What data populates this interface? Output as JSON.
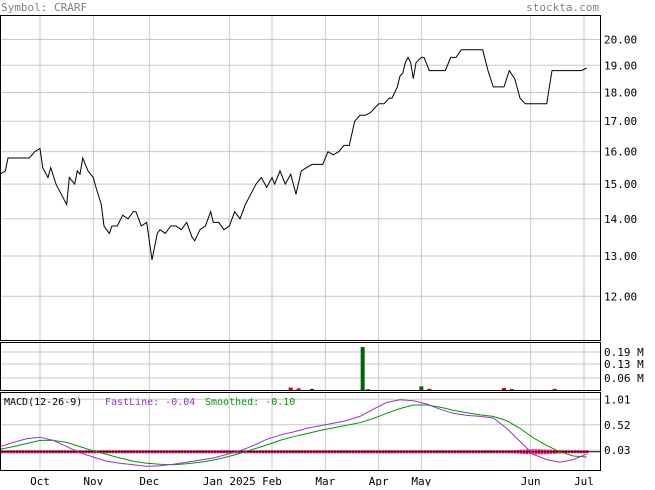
{
  "header": {
    "symbol_text": "Symbol: CRARF",
    "site_text": "stockta.com"
  },
  "colors": {
    "background": "#ffffff",
    "frame": "#000000",
    "grid": "#c8c8c8",
    "price_line": "#000000",
    "volume_bar_up": "#006600",
    "volume_bar_down": "#cc0000",
    "macd_fastline": "#9933cc",
    "macd_smoothed": "#009900",
    "macd_histogram": "#ff0066",
    "header_text": "#808080"
  },
  "chart_data": {
    "type": "line",
    "x_tick_labels": [
      "Oct",
      "Nov",
      "Dec",
      "Jan 2025",
      "Feb",
      "Mar",
      "Apr",
      "May",
      "Jun",
      "Jul"
    ],
    "x_tick_positions": [
      1.5,
      3.5,
      5.6,
      8.6,
      10.2,
      12.2,
      14.2,
      15.8,
      19.9,
      21.9
    ],
    "x_range": [
      0,
      22.5
    ],
    "grid": true,
    "price_panel": {
      "y_scale": "log",
      "ylim": [
        11.0,
        21.0
      ],
      "y_tick_labels": [
        "20.00",
        "19.00",
        "18.00",
        "17.00",
        "16.00",
        "15.00",
        "14.00",
        "13.00",
        "12.00"
      ],
      "y_tick_values": [
        20,
        19,
        18,
        17,
        16,
        15,
        14,
        13,
        12
      ],
      "series": [
        {
          "x": [
            0,
            0.2,
            0.3,
            0.5,
            0.7,
            0.9,
            1.1,
            1.3,
            1.5,
            1.6,
            1.8,
            1.9,
            2.1,
            2.3,
            2.5,
            2.6,
            2.8,
            2.9,
            3.0,
            3.1,
            3.3,
            3.5,
            3.6,
            3.8,
            3.9,
            4.1,
            4.2,
            4.4,
            4.6,
            4.8,
            5.0,
            5.1,
            5.3,
            5.5,
            5.6,
            5.7,
            5.9,
            6.0,
            6.2,
            6.4,
            6.6,
            6.8,
            7.0,
            7.2,
            7.3,
            7.5,
            7.7,
            7.9,
            8.0,
            8.2,
            8.4,
            8.6,
            8.8,
            9.0,
            9.2,
            9.4,
            9.6,
            9.8,
            10.0,
            10.2,
            10.3,
            10.5,
            10.7,
            10.9,
            11.1,
            11.3,
            11.5,
            11.7,
            11.9,
            12.1,
            12.3,
            12.5,
            12.7,
            12.9,
            13.1,
            13.3,
            13.5,
            13.7,
            13.9,
            14.0,
            14.2,
            14.4,
            14.6,
            14.7,
            14.8,
            14.9,
            15.0,
            15.1,
            15.2,
            15.3,
            15.4,
            15.5,
            15.6,
            15.8,
            15.9,
            16.1,
            16.3,
            16.5,
            16.7,
            16.9,
            17.1,
            17.3,
            17.5,
            17.7,
            17.9,
            18.1,
            18.3,
            18.5,
            18.7,
            18.9,
            19.1,
            19.3,
            19.5,
            19.7,
            19.9,
            20.1,
            20.3,
            20.5,
            20.7,
            20.9,
            21.1,
            21.3,
            21.5,
            21.6,
            21.8,
            22.0
          ],
          "y": [
            15.3,
            15.4,
            15.8,
            15.8,
            15.8,
            15.8,
            15.8,
            16.0,
            16.1,
            15.5,
            15.2,
            15.5,
            15.0,
            14.7,
            14.4,
            15.2,
            15.0,
            15.4,
            15.3,
            15.8,
            15.4,
            15.2,
            14.9,
            14.4,
            13.8,
            13.6,
            13.8,
            13.8,
            14.1,
            14.0,
            14.2,
            14.2,
            13.8,
            13.9,
            13.4,
            12.9,
            13.6,
            13.7,
            13.6,
            13.8,
            13.8,
            13.7,
            13.9,
            13.5,
            13.4,
            13.7,
            13.8,
            14.2,
            13.9,
            13.9,
            13.7,
            13.8,
            14.2,
            14.0,
            14.4,
            14.7,
            15.0,
            15.2,
            14.9,
            15.2,
            15.0,
            15.4,
            15.0,
            15.3,
            14.7,
            15.4,
            15.5,
            15.6,
            15.6,
            15.6,
            16.0,
            15.9,
            16.0,
            16.2,
            16.2,
            17.0,
            17.2,
            17.2,
            17.3,
            17.4,
            17.6,
            17.6,
            17.8,
            17.8,
            18.0,
            18.2,
            18.6,
            18.7,
            19.1,
            19.3,
            19.1,
            18.5,
            19.1,
            19.3,
            19.3,
            18.8,
            18.8,
            18.8,
            18.8,
            19.3,
            19.3,
            19.6,
            19.6,
            19.6,
            19.6,
            19.6,
            18.8,
            18.2,
            18.2,
            18.2,
            18.8,
            18.5,
            17.8,
            17.6,
            17.6,
            17.6,
            17.6,
            17.6,
            18.8,
            18.8,
            18.8,
            18.8,
            18.8,
            18.8,
            18.8,
            18.9
          ]
        }
      ]
    },
    "volume_panel": {
      "ylim": [
        0,
        0.24
      ],
      "y_tick_labels": [
        "0.19 M",
        "0.13 M",
        "0.06 M"
      ],
      "y_tick_values": [
        0.19,
        0.13,
        0.06
      ],
      "bars": [
        {
          "x": 10.9,
          "value": 0.012,
          "color": "down"
        },
        {
          "x": 11.2,
          "value": 0.008,
          "color": "down"
        },
        {
          "x": 11.7,
          "value": 0.006,
          "color": "up"
        },
        {
          "x": 13.6,
          "value": 0.215,
          "color": "up"
        },
        {
          "x": 13.8,
          "value": 0.004,
          "color": "up"
        },
        {
          "x": 15.8,
          "value": 0.018,
          "color": "up"
        },
        {
          "x": 16.1,
          "value": 0.006,
          "color": "down"
        },
        {
          "x": 18.9,
          "value": 0.01,
          "color": "down"
        },
        {
          "x": 19.2,
          "value": 0.005,
          "color": "down"
        },
        {
          "x": 20.8,
          "value": 0.006,
          "color": "down"
        }
      ]
    },
    "macd_panel": {
      "legend_title": "MACD(12-26-9)",
      "fastline_label": "FastLine: -0.04",
      "smoothed_label": "Smoothed: -0.10",
      "ylim": [
        -0.35,
        1.15
      ],
      "y_tick_labels": [
        "1.01",
        "0.52",
        "0.03"
      ],
      "y_tick_values": [
        1.01,
        0.52,
        0.03
      ],
      "fastline": {
        "x": [
          0,
          0.5,
          1,
          1.5,
          2,
          2.5,
          3,
          3.5,
          4,
          4.5,
          5,
          5.5,
          6,
          6.5,
          7,
          7.5,
          8,
          8.5,
          9,
          9.5,
          10,
          10.5,
          11,
          11.5,
          12,
          12.5,
          13,
          13.5,
          14,
          14.5,
          15,
          15.5,
          16,
          16.5,
          17,
          17.5,
          18,
          18.5,
          19,
          19.5,
          20,
          20.5,
          21,
          21.5,
          22
        ],
        "y": [
          0.1,
          0.18,
          0.25,
          0.28,
          0.22,
          0.1,
          -0.02,
          -0.1,
          -0.18,
          -0.22,
          -0.25,
          -0.28,
          -0.27,
          -0.24,
          -0.2,
          -0.16,
          -0.12,
          -0.05,
          0.02,
          0.12,
          0.24,
          0.32,
          0.38,
          0.45,
          0.5,
          0.55,
          0.6,
          0.68,
          0.82,
          0.95,
          1.0,
          0.98,
          0.92,
          0.82,
          0.74,
          0.7,
          0.68,
          0.65,
          0.45,
          0.2,
          -0.05,
          -0.15,
          -0.2,
          -0.15,
          -0.04
        ]
      },
      "smoothed": {
        "x": [
          0,
          0.5,
          1,
          1.5,
          2,
          2.5,
          3,
          3.5,
          4,
          4.5,
          5,
          5.5,
          6,
          6.5,
          7,
          7.5,
          8,
          8.5,
          9,
          9.5,
          10,
          10.5,
          11,
          11.5,
          12,
          12.5,
          13,
          13.5,
          14,
          14.5,
          15,
          15.5,
          16,
          16.5,
          17,
          17.5,
          18,
          18.5,
          19,
          19.5,
          20,
          20.5,
          21,
          21.5,
          22
        ],
        "y": [
          0.05,
          0.1,
          0.16,
          0.22,
          0.22,
          0.18,
          0.1,
          0.02,
          -0.05,
          -0.12,
          -0.18,
          -0.22,
          -0.24,
          -0.25,
          -0.23,
          -0.2,
          -0.16,
          -0.1,
          -0.03,
          0.05,
          0.13,
          0.22,
          0.29,
          0.35,
          0.41,
          0.46,
          0.51,
          0.56,
          0.64,
          0.74,
          0.83,
          0.9,
          0.9,
          0.86,
          0.8,
          0.75,
          0.71,
          0.68,
          0.6,
          0.45,
          0.27,
          0.12,
          0.0,
          -0.08,
          -0.1
        ]
      }
    }
  }
}
